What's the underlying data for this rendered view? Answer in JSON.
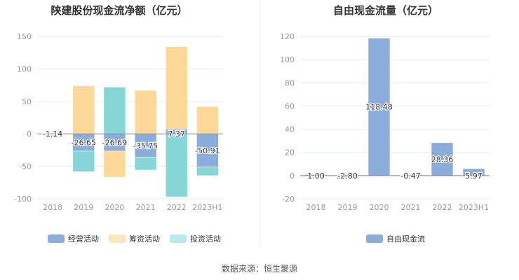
{
  "source": "数据来源：恒生聚源",
  "chart_data": [
    {
      "type": "bar",
      "stacked": true,
      "title": "陕建股份现金流净额（亿元）",
      "categories": [
        "2018",
        "2019",
        "2020",
        "2021",
        "2022",
        "2023H1"
      ],
      "ylim": [
        -100,
        150
      ],
      "yticks": [
        150,
        100,
        50,
        0,
        -50,
        -100
      ],
      "legend": "bottom",
      "series": [
        {
          "name": "经营活动",
          "color": "#8cacdb",
          "values": [
            -1.14,
            -26.65,
            -26.69,
            -35.75,
            7.37,
            -50.91
          ],
          "labels": [
            "-1.14",
            "-26.65",
            "-26.69",
            "-35.75",
            "7.37",
            "-50.91"
          ]
        },
        {
          "name": "筹资活动",
          "color": "#fed899",
          "values": [
            0.5,
            74,
            -40,
            67,
            127,
            42
          ]
        },
        {
          "name": "投资活动",
          "color": "#86d6d8",
          "values": [
            0,
            -31.5,
            72,
            -20,
            -97,
            -13.5
          ]
        }
      ]
    },
    {
      "type": "bar",
      "title": "自由现金流量（亿元）",
      "categories": [
        "2018",
        "2019",
        "2020",
        "2021",
        "2022",
        "2023H1"
      ],
      "ylim": [
        -20,
        120
      ],
      "yticks": [
        120,
        100,
        80,
        60,
        40,
        20,
        0,
        -20
      ],
      "legend": "bottom",
      "series": [
        {
          "name": "自由现金流",
          "color": "#8cacdb",
          "values": [
            1.0,
            -2.8,
            118.48,
            -0.47,
            28.36,
            5.97
          ],
          "labels": [
            "1.00",
            "-2.80",
            "118.48",
            "-0.47",
            "28.36",
            "5.97"
          ]
        }
      ]
    }
  ]
}
